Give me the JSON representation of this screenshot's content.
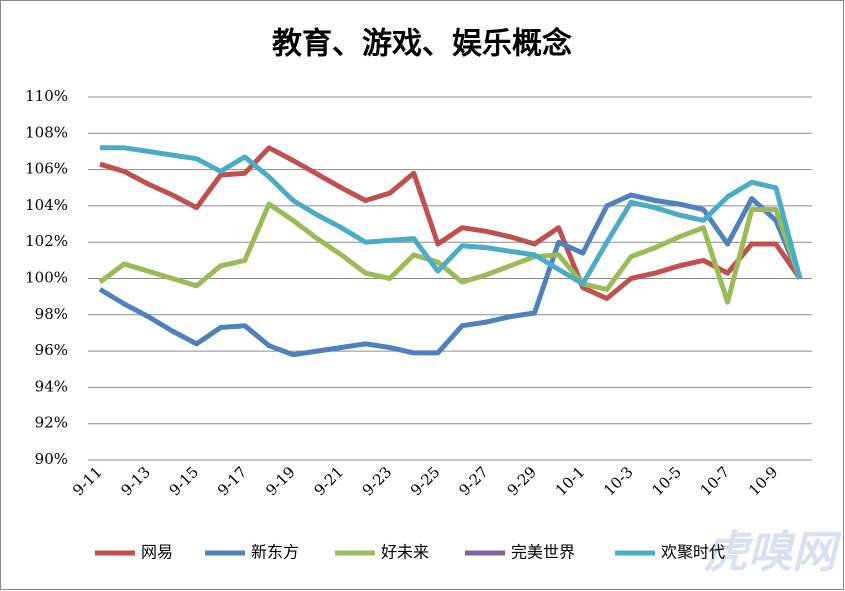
{
  "chart_data": {
    "type": "line",
    "title": "教育、游戏、娱乐概念",
    "categories": [
      "9-11",
      null,
      "9-13",
      null,
      "9-15",
      null,
      "9-17",
      null,
      "9-19",
      null,
      "9-21",
      null,
      "9-23",
      null,
      "9-25",
      null,
      "9-27",
      null,
      "9-29",
      null,
      "10-1",
      null,
      "10-3",
      null,
      "10-5",
      null,
      "10-7",
      null,
      "10-9",
      null
    ],
    "series": [
      {
        "name": "网易",
        "color": "#c0504d",
        "values": [
          106.3,
          105.9,
          105.2,
          104.6,
          103.9,
          105.7,
          105.8,
          107.2,
          106.5,
          105.75,
          105.0,
          104.3,
          104.7,
          105.8,
          101.9,
          102.8,
          102.6,
          102.3,
          101.9,
          102.8,
          99.5,
          98.9,
          100.0,
          100.3,
          100.7,
          101.0,
          100.3,
          101.9,
          101.9,
          100.0
        ]
      },
      {
        "name": "新东方",
        "color": "#4f81bd",
        "values": [
          99.4,
          98.6,
          97.9,
          97.1,
          96.4,
          97.3,
          97.4,
          96.3,
          95.8,
          96.0,
          96.2,
          96.4,
          96.2,
          95.9,
          95.9,
          97.4,
          97.6,
          97.9,
          98.1,
          102.0,
          101.4,
          104.0,
          104.6,
          104.3,
          104.1,
          103.8,
          101.9,
          104.4,
          103.2,
          100.0
        ]
      },
      {
        "name": "好未来",
        "color": "#9bbb59",
        "values": [
          99.8,
          100.8,
          100.4,
          100.0,
          99.6,
          100.7,
          101.0,
          104.1,
          103.2,
          102.2,
          101.3,
          100.3,
          100.0,
          101.3,
          100.9,
          99.8,
          100.2,
          100.7,
          101.2,
          101.3,
          99.7,
          99.4,
          101.2,
          101.7,
          102.3,
          102.8,
          98.7,
          103.8,
          103.8,
          100.0
        ]
      },
      {
        "name": "完美世界",
        "color": "#8064a2",
        "values": [
          null,
          null,
          null,
          null,
          null,
          null,
          null,
          null,
          null,
          null,
          null,
          null,
          null,
          null,
          null,
          null,
          null,
          null,
          null,
          null,
          null,
          null,
          null,
          null,
          null,
          null,
          null,
          null,
          null,
          null
        ]
      },
      {
        "name": "欢聚时代",
        "color": "#4bacc6",
        "values": [
          107.2,
          107.2,
          107.0,
          106.8,
          106.6,
          105.9,
          106.7,
          105.6,
          104.3,
          103.5,
          102.8,
          102.0,
          102.1,
          102.2,
          100.4,
          101.8,
          101.7,
          101.5,
          101.3,
          100.5,
          99.7,
          102.0,
          104.2,
          103.9,
          103.5,
          103.2,
          104.5,
          105.3,
          105.0,
          100.0
        ]
      }
    ],
    "ylim": [
      90,
      110
    ],
    "yticks": [
      {
        "value": 90,
        "label": "90%"
      },
      {
        "value": 92,
        "label": "92%"
      },
      {
        "value": 94,
        "label": "94%"
      },
      {
        "value": 96,
        "label": "96%"
      },
      {
        "value": 98,
        "label": "98%"
      },
      {
        "value": 100,
        "label": "100%"
      },
      {
        "value": 102,
        "label": "102%"
      },
      {
        "value": 104,
        "label": "104%"
      },
      {
        "value": 106,
        "label": "106%"
      },
      {
        "value": 108,
        "label": "108%"
      },
      {
        "value": 110,
        "label": "110%"
      }
    ],
    "grid": true
  },
  "watermark": "虎嗅网"
}
